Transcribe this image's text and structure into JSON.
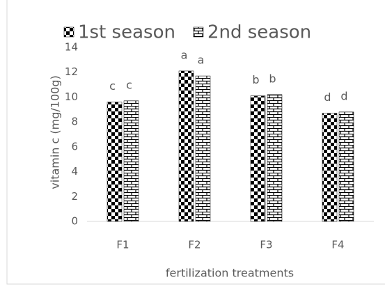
{
  "chart_data": {
    "type": "bar",
    "categories": [
      "F1",
      "F2",
      "F3",
      "F4"
    ],
    "series": [
      {
        "name": "1st season",
        "color": "#000000",
        "values": [
          9.6,
          12.1,
          10.1,
          8.7
        ],
        "letters": [
          "c",
          "a",
          "b",
          "d"
        ]
      },
      {
        "name": "2nd season",
        "color": "#000000",
        "values": [
          9.7,
          11.7,
          10.2,
          8.8
        ],
        "letters": [
          "c",
          "a",
          "b",
          "d"
        ]
      }
    ],
    "ylim": [
      0,
      14
    ],
    "yticks": [
      0,
      2,
      4,
      6,
      8,
      10,
      12,
      14
    ],
    "grid": false,
    "ylabel": "vitamin c (mg/100g)",
    "xlabel": "fertilization treatments",
    "legend": "top"
  }
}
